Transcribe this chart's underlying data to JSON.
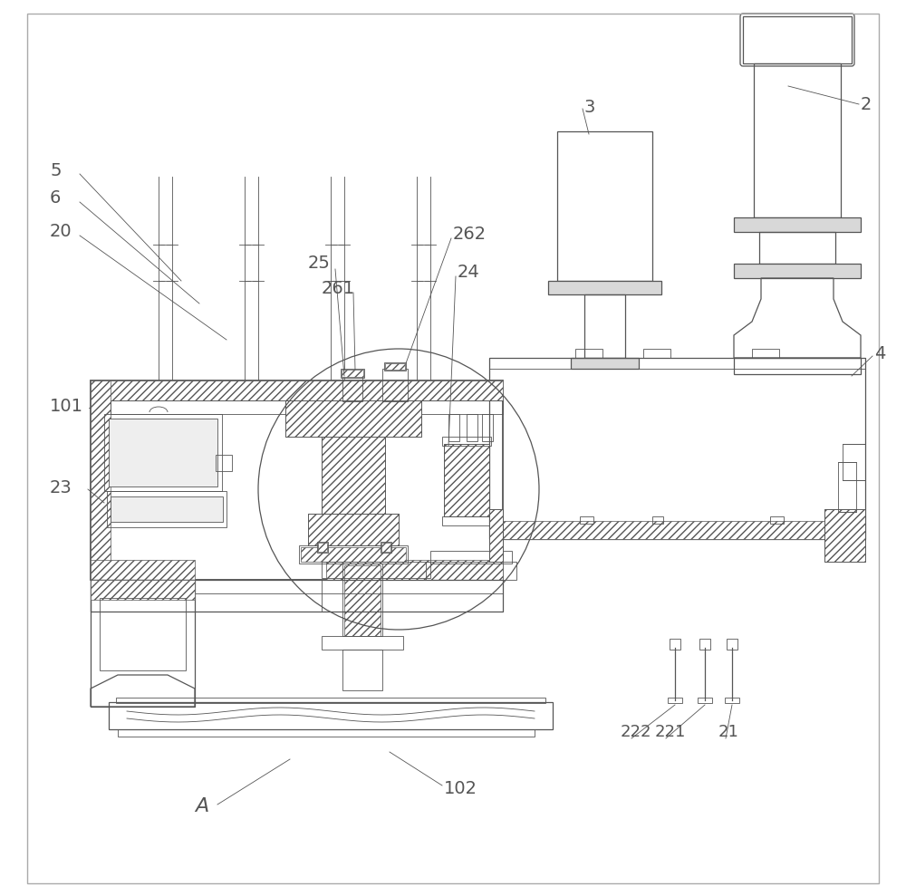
{
  "bg_color": "#ffffff",
  "lc": "#555555",
  "tl": 0.6,
  "ml": 0.9,
  "thk": 1.3,
  "figw": 10.0,
  "figh": 9.89,
  "dpi": 100
}
